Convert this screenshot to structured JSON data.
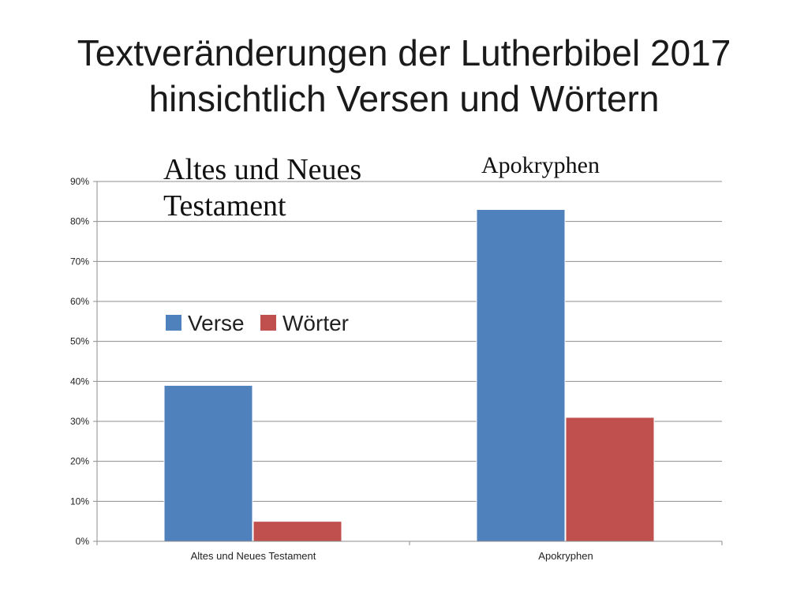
{
  "title": {
    "line1": "Textveränderungen der Lutherbibel 2017",
    "line2": "hinsichtlich Versen und Wörtern"
  },
  "overlay_labels": {
    "left_line1": "Altes und Neues",
    "left_line2": "Testament",
    "right": "Apokryphen"
  },
  "chart_data": {
    "type": "bar",
    "categories": [
      "Altes und Neues Testament",
      "Apokryphen"
    ],
    "series": [
      {
        "name": "Verse",
        "values": [
          0.39,
          0.83
        ],
        "color": "#4f81bd"
      },
      {
        "name": "Wörter",
        "values": [
          0.05,
          0.31
        ],
        "color": "#c0504d"
      }
    ],
    "ylim": [
      0,
      0.9
    ],
    "yticks": [
      "0%",
      "10%",
      "20%",
      "30%",
      "40%",
      "50%",
      "60%",
      "70%",
      "80%",
      "90%"
    ],
    "grid": true,
    "legend_position": "center-left"
  }
}
